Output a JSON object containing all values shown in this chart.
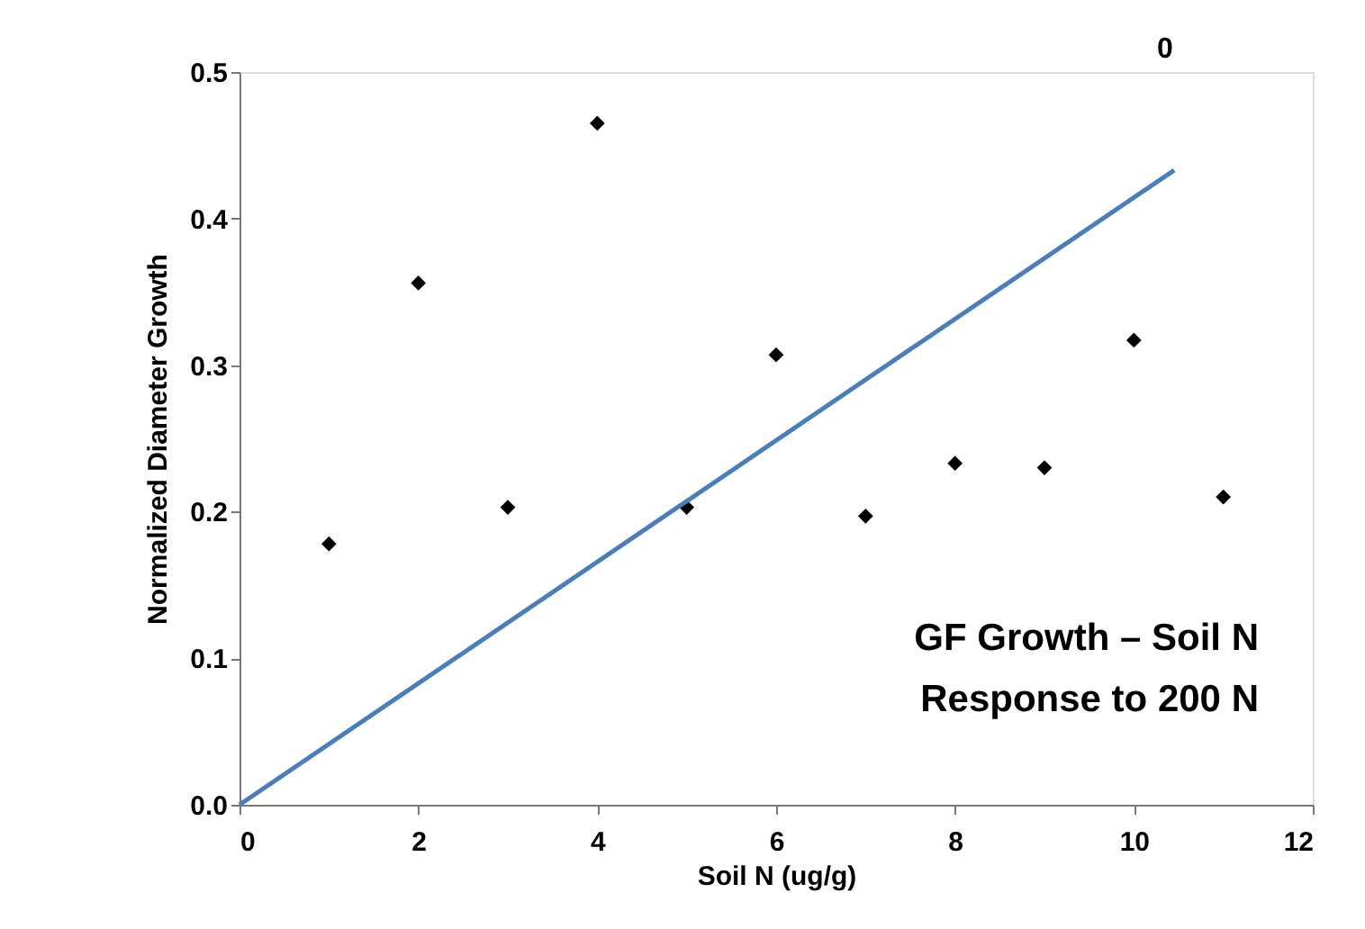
{
  "chart_data": {
    "type": "scatter",
    "xlabel": "Soil N (ug/g)",
    "ylabel": "Normalized Diameter Growth",
    "annotations": [
      "GF Growth – Soil N",
      "Response to 200 N",
      "0"
    ],
    "series": [
      {
        "color": "#000000",
        "marker": "diamond",
        "x": [
          1,
          2,
          3,
          4,
          5,
          6,
          7,
          8,
          9,
          10,
          11
        ],
        "values": [
          0.178,
          0.356,
          0.203,
          0.465,
          0.203,
          0.307,
          0.197,
          0.233,
          0.23,
          0.317,
          0.21
        ]
      },
      {
        "type": "line",
        "color": "#4a7ebb",
        "marker": "none",
        "line_style": "solid",
        "x": [
          0,
          10.45
        ],
        "values": [
          0,
          0.433
        ]
      }
    ],
    "xlim": [
      0,
      12
    ],
    "xticks": [
      0,
      2,
      4,
      6,
      8,
      10,
      12
    ],
    "ylim": [
      0,
      0.5
    ],
    "yticks": [
      {
        "value": 0,
        "label": "0.0"
      },
      {
        "value": 0.1,
        "label": "0.1"
      },
      {
        "value": 0.2,
        "label": "0.2"
      },
      {
        "value": 0.3,
        "label": "0.3"
      },
      {
        "value": 0.4,
        "label": "0.4"
      },
      {
        "value": 0.5,
        "label": "0.5"
      }
    ],
    "grid": false
  }
}
